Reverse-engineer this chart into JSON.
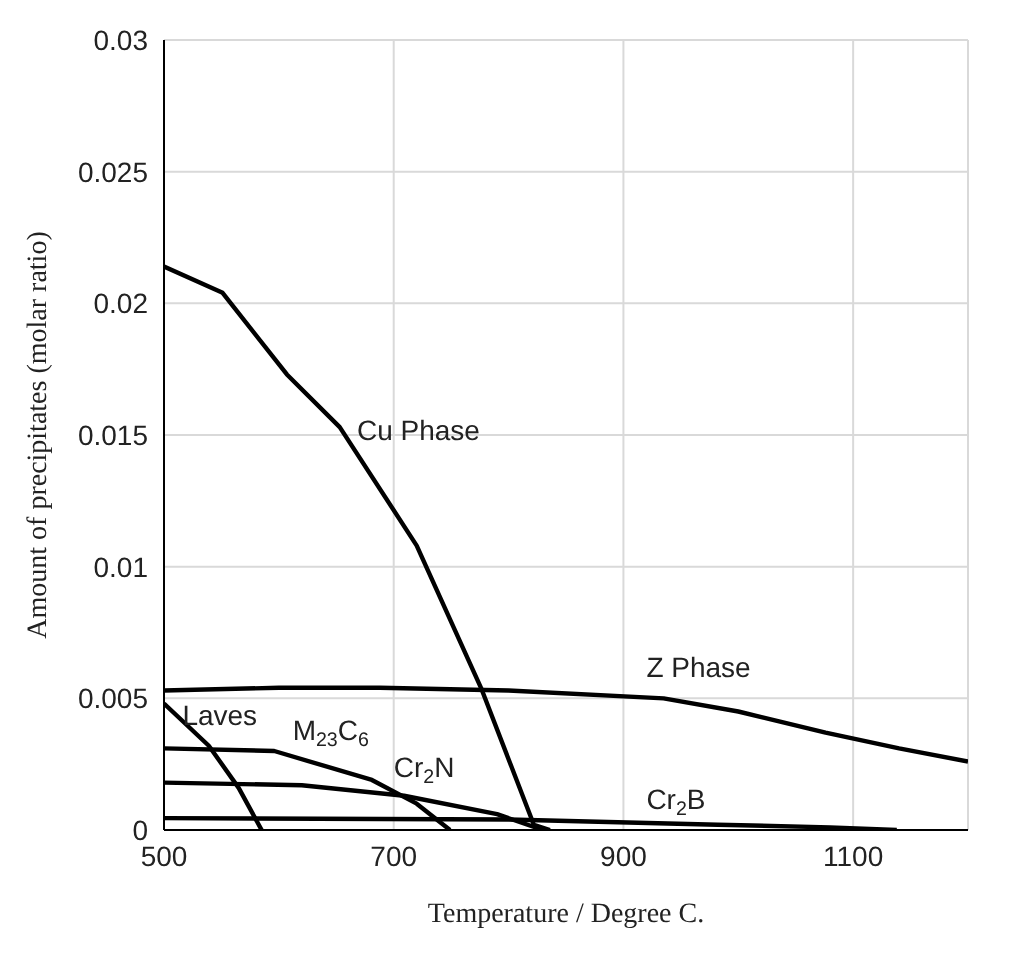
{
  "chart_data": {
    "type": "line",
    "xlabel": "Temperature / Degree C.",
    "ylabel": "Amount of precipitates (molar ratio)",
    "xlim": [
      500,
      1200
    ],
    "xticks": [
      500,
      700,
      900,
      1100
    ],
    "ylim": [
      0,
      0.03
    ],
    "yticks": [
      0,
      0.005,
      0.01,
      0.015,
      0.02,
      0.025,
      0.03
    ],
    "grid": true,
    "legend": false,
    "marker": "none",
    "line_style": "solid",
    "series": [
      {
        "name": "Cu Phase",
        "color": "#000000",
        "x": [
          500,
          551,
          607,
          653,
          720,
          776,
          822,
          836
        ],
        "values": [
          0.0214,
          0.0204,
          0.0173,
          0.0153,
          0.0108,
          0.0054,
          0.0002,
          0
        ]
      },
      {
        "name": "Z Phase",
        "color": "#000000",
        "x": [
          500,
          600,
          688,
          800,
          935,
          1000,
          1076,
          1140,
          1200
        ],
        "values": [
          0.0053,
          0.0054,
          0.0054,
          0.0053,
          0.005,
          0.0045,
          0.0037,
          0.0031,
          0.0026
        ]
      },
      {
        "name": "Laves",
        "color": "#000000",
        "x": [
          500,
          539,
          565,
          585
        ],
        "values": [
          0.0048,
          0.0032,
          0.0016,
          0
        ]
      },
      {
        "name": "M$_{23}$C$_{6}$",
        "color": "#000000",
        "x": [
          500,
          596,
          681,
          720,
          749
        ],
        "values": [
          0.0031,
          0.003,
          0.0019,
          0.001,
          0
        ]
      },
      {
        "name": "Cr$_{2}$N",
        "color": "#000000",
        "x": [
          500,
          620,
          709,
          790,
          830
        ],
        "values": [
          0.0018,
          0.0017,
          0.0013,
          0.0006,
          0
        ]
      },
      {
        "name": "Cr$_{2}$B",
        "color": "#000000",
        "x": [
          500,
          800,
          982,
          1080,
          1138
        ],
        "values": [
          0.00045,
          0.0004,
          0.0002,
          0.0001,
          0
        ]
      }
    ]
  }
}
